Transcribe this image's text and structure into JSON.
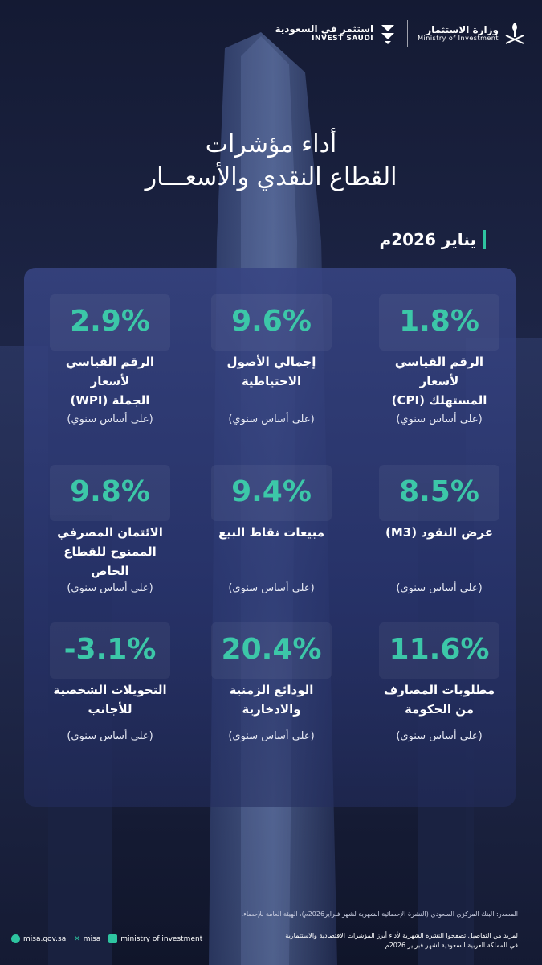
{
  "header": {
    "invest_ar": "استثمر في السعودية",
    "invest_en": "INVEST SAUDI",
    "moi_ar": "وزارة الاستثمار",
    "moi_en": "Ministry of Investment"
  },
  "title": {
    "line1": "أداء مؤشرات",
    "line2": "القطاع النقدي والأسعـــار"
  },
  "period": "يناير 2026م",
  "indicators": [
    {
      "value": "1.8%",
      "label": "الرقم القياسي لأسعار\nالمستهلك (CPI)",
      "basis": "(على أساس سنوي)"
    },
    {
      "value": "9.6%",
      "label": "إجمالي الأصول\nالاحتياطية",
      "basis": "(على أساس سنوي)"
    },
    {
      "value": "2.9%",
      "label": "الرقم القياسي لأسعار\nالجملة (WPI)",
      "basis": "(على أساس سنوي)"
    },
    {
      "value": "8.5%",
      "label": "عرض النقود (M3)",
      "basis": "(على أساس سنوي)"
    },
    {
      "value": "9.4%",
      "label": "مبيعات نقاط البيع",
      "basis": "(على أساس سنوي)"
    },
    {
      "value": "9.8%",
      "label": "الائتمان المصرفي\nالممنوح للقطاع الخاص",
      "basis": "(على أساس سنوي)"
    },
    {
      "value": "11.6%",
      "label": "مطلوبات المصارف\nمن الحكومة",
      "basis": "(على أساس سنوي)"
    },
    {
      "value": "20.4%",
      "label": "الودائع الزمنية\nوالادخارية",
      "basis": "(على أساس سنوي)"
    },
    {
      "value": "-3.1%",
      "label": "التحويلات الشخصية\nللأجانب",
      "basis": "(على أساس سنوي)"
    }
  ],
  "source": "المصدر: البنك المركزي السعودي (النشرة الإحصائية الشهرية لشهر فبراير2026م)، الهيئة العامة للإحصاء.",
  "footer": {
    "note": "لمزيد من التفاصيل تصفحوا النشرة الشهرية لأداء أبرز المؤشرات الاقتصادية والاستثمارية\nفي المملكة العربية السعودية لشهر فبراير 2026م",
    "website": "misa.gov.sa",
    "x_handle": "misa",
    "linkedin": "ministry of investment"
  },
  "colors": {
    "accent": "#3cc7a8",
    "background": "#1d2546",
    "panel": "#2f3c78"
  }
}
